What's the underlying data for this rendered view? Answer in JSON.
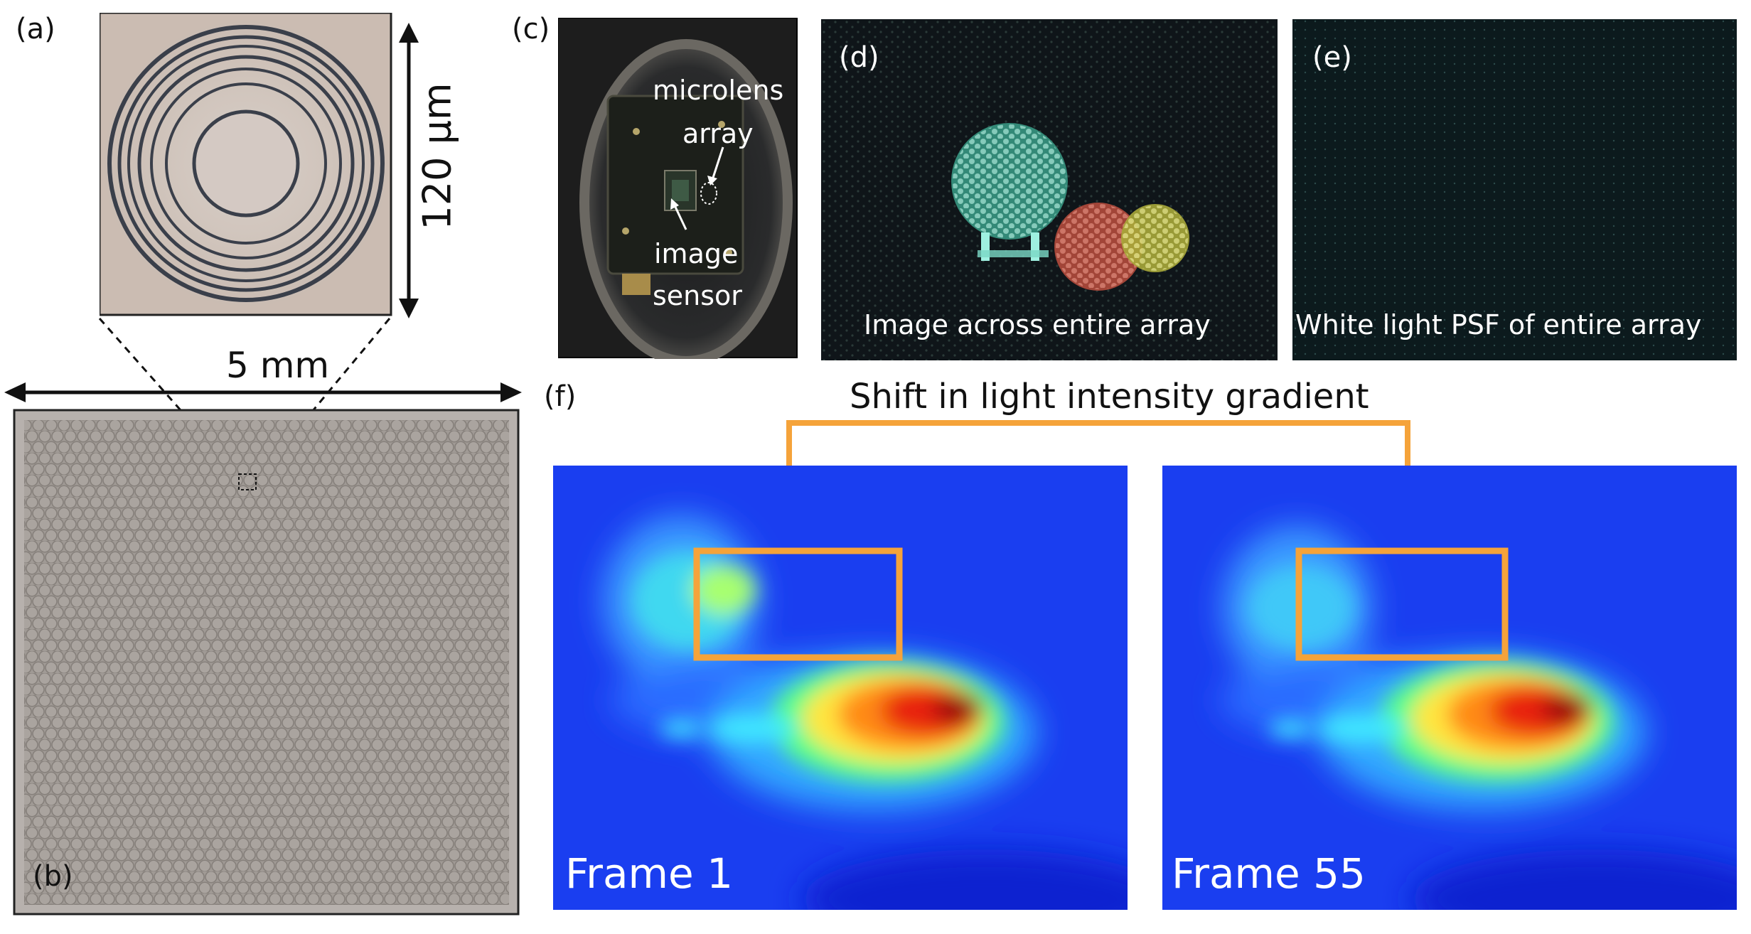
{
  "panels": {
    "a": {
      "label": "(a)",
      "scale_text": "120 µm"
    },
    "b": {
      "label": "(b)",
      "scale_text": "5 mm"
    },
    "c": {
      "label": "(c)",
      "callout_lens_1": "microlens",
      "callout_lens_2": "array",
      "callout_sensor_1": "image",
      "callout_sensor_2": "sensor"
    },
    "d": {
      "label": "(d)",
      "caption": "Image across entire array"
    },
    "e": {
      "label": "(e)",
      "caption": "White light PSF of entire array"
    },
    "f": {
      "label": "(f)",
      "annotation": "Shift in light intensity gradient",
      "frame_left": "Frame 1",
      "frame_right": "Frame 55"
    }
  },
  "colors": {
    "highlight": "#f5a33a",
    "heat_background": "#1a3ef0",
    "dark_panel": "#101418"
  }
}
